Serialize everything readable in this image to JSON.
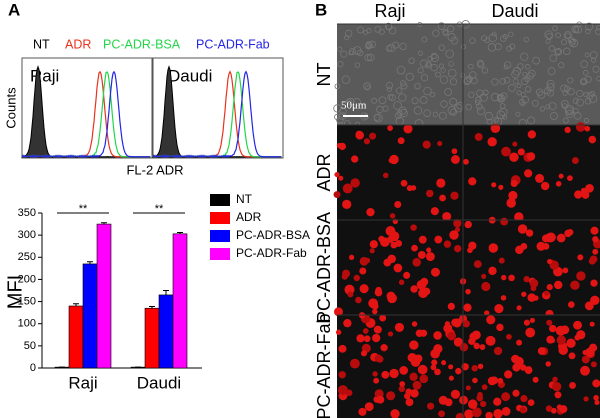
{
  "panels": [
    "A",
    "B"
  ],
  "histogram": {
    "legend": [
      {
        "label": "NT",
        "color": "#000000"
      },
      {
        "label": "ADR",
        "color": "#e8321e"
      },
      {
        "label": "PC-ADR-BSA",
        "color": "#22d64a"
      },
      {
        "label": "PC-ADR-Fab",
        "color": "#2424e6"
      }
    ],
    "panels": [
      "Raji",
      "Daudi"
    ],
    "ylabel": "Counts",
    "xlabel": "FL-2 ADR"
  },
  "chart_data": {
    "type": "bar",
    "ylabel": "MFI",
    "categories": [
      "Raji",
      "Daudi"
    ],
    "series": [
      {
        "name": "NT",
        "color": "#000000",
        "values": [
          2,
          2
        ],
        "errors": [
          0,
          0
        ]
      },
      {
        "name": "ADR",
        "color": "#ff0000",
        "values": [
          140,
          135
        ],
        "errors": [
          5,
          4
        ]
      },
      {
        "name": "PC-ADR-BSA",
        "color": "#0000ff",
        "values": [
          235,
          165
        ],
        "errors": [
          5,
          10
        ]
      },
      {
        "name": "PC-ADR-Fab",
        "color": "#ff00ff",
        "values": [
          325,
          303
        ],
        "errors": [
          3,
          3
        ]
      }
    ],
    "ylim": [
      0,
      350
    ],
    "yticks": [
      0,
      50,
      100,
      150,
      200,
      250,
      300,
      350
    ],
    "annotations": [
      "**",
      "**"
    ]
  },
  "images": {
    "columns": [
      "Raji",
      "Daudi"
    ],
    "rows": [
      "NT",
      "ADR",
      "PC-ADR-BSA",
      "PC-ADR-Fab"
    ],
    "scale": "50μm"
  }
}
